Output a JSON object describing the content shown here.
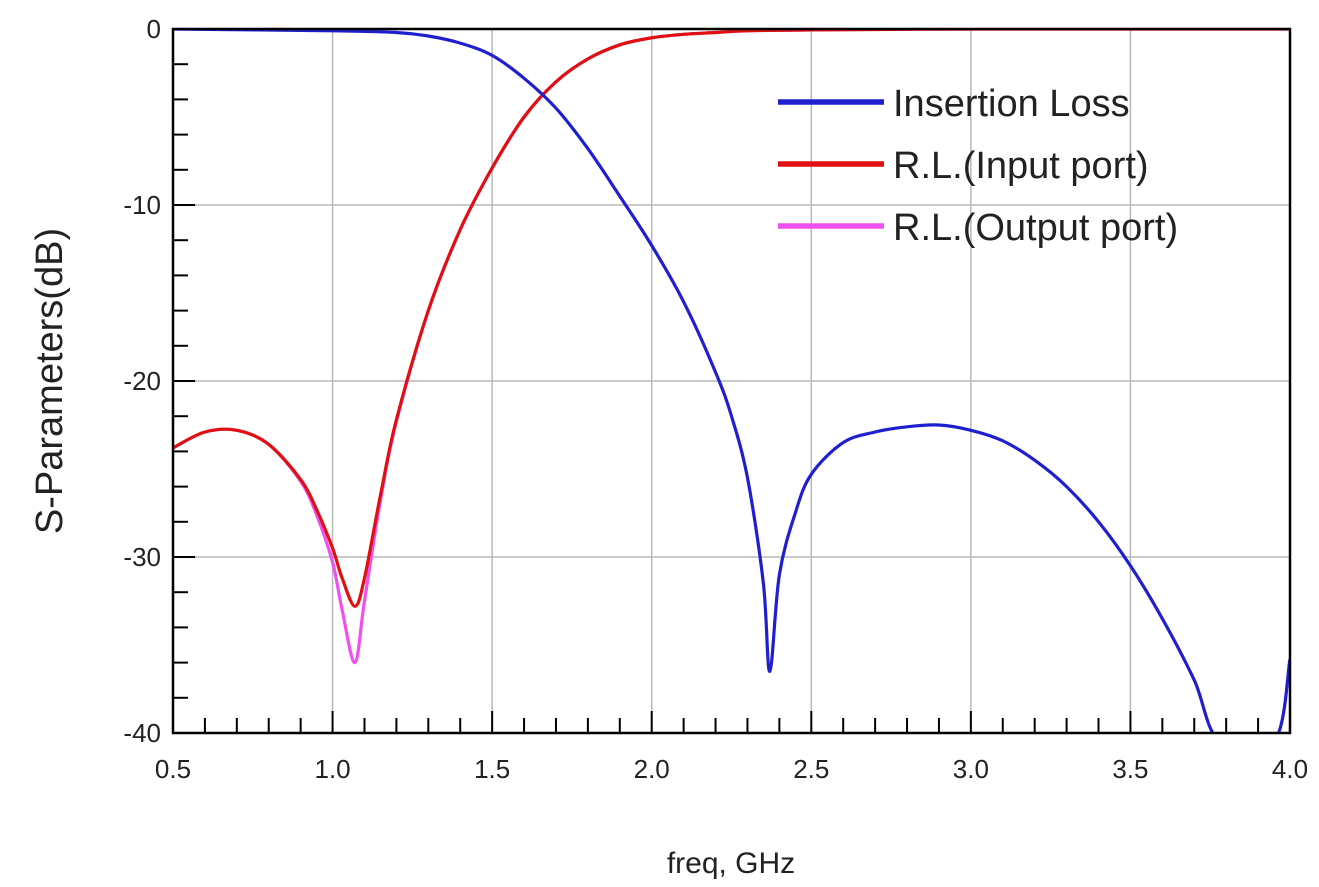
{
  "chart_data": {
    "type": "line",
    "title": "",
    "xlabel": "freq, GHz",
    "ylabel": "S-Parameters(dB)",
    "xlim": [
      0.5,
      4.0
    ],
    "ylim": [
      -40,
      0
    ],
    "x_ticks": [
      "0.5",
      "1.0",
      "1.5",
      "2.0",
      "2.5",
      "3.0",
      "3.5",
      "4.0"
    ],
    "y_ticks": [
      "0",
      "-10",
      "-20",
      "-30",
      "-40"
    ],
    "grid": true,
    "legend_position": "top-right",
    "series": [
      {
        "name": "Insertion Loss",
        "color": "#1f1fd0",
        "x": [
          0.5,
          1.0,
          1.2,
          1.3,
          1.4,
          1.5,
          1.6,
          1.7,
          1.8,
          1.9,
          2.0,
          2.1,
          2.2,
          2.25,
          2.3,
          2.35,
          2.37,
          2.4,
          2.45,
          2.5,
          2.6,
          2.7,
          2.8,
          2.9,
          3.0,
          3.1,
          3.2,
          3.3,
          3.4,
          3.5,
          3.6,
          3.7,
          3.78,
          3.95,
          4.0
        ],
        "y": [
          0,
          -0.1,
          -0.2,
          -0.4,
          -0.8,
          -1.5,
          -2.8,
          -4.5,
          -6.8,
          -9.5,
          -12.3,
          -15.5,
          -19.5,
          -22.0,
          -25.5,
          -31.5,
          -36.5,
          -31.0,
          -27.5,
          -25.3,
          -23.5,
          -22.9,
          -22.6,
          -22.5,
          -22.8,
          -23.4,
          -24.5,
          -26.0,
          -28.0,
          -30.5,
          -33.5,
          -37.0,
          -40.5,
          -40.5,
          -35.8
        ]
      },
      {
        "name": "R.L.(Input port)",
        "color": "#e01010",
        "x": [
          0.5,
          0.6,
          0.7,
          0.8,
          0.9,
          0.95,
          1.0,
          1.03,
          1.07,
          1.1,
          1.15,
          1.2,
          1.3,
          1.4,
          1.5,
          1.6,
          1.7,
          1.8,
          1.9,
          2.0,
          2.1,
          2.2,
          2.3,
          2.5,
          3.0,
          3.5,
          4.0
        ],
        "y": [
          -23.8,
          -22.9,
          -22.8,
          -23.6,
          -25.6,
          -27.3,
          -29.5,
          -31.2,
          -32.8,
          -31.2,
          -26.5,
          -22.2,
          -16.0,
          -11.4,
          -7.9,
          -5.0,
          -3.0,
          -1.7,
          -0.9,
          -0.5,
          -0.3,
          -0.2,
          -0.1,
          -0.05,
          0,
          0,
          0
        ]
      },
      {
        "name": "R.L.(Output port)",
        "color": "#f050f0",
        "x": [
          0.5,
          0.6,
          0.7,
          0.8,
          0.9,
          0.95,
          1.0,
          1.03,
          1.07,
          1.1,
          1.15,
          1.2,
          1.3,
          1.4,
          1.5,
          1.6,
          1.7,
          1.8,
          1.9,
          2.0,
          2.1,
          2.2,
          2.3,
          2.5,
          3.0,
          3.5,
          4.0
        ],
        "y": [
          -23.8,
          -22.9,
          -22.8,
          -23.6,
          -25.7,
          -27.6,
          -30.3,
          -33.0,
          -36.0,
          -32.5,
          -26.8,
          -22.3,
          -16.0,
          -11.4,
          -7.9,
          -5.0,
          -3.0,
          -1.7,
          -0.9,
          -0.5,
          -0.3,
          -0.2,
          -0.1,
          -0.05,
          0,
          0,
          0
        ]
      }
    ]
  }
}
